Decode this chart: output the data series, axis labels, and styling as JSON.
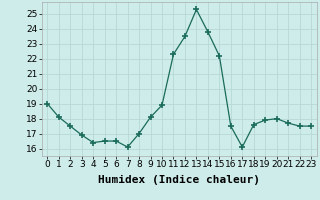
{
  "x": [
    0,
    1,
    2,
    3,
    4,
    5,
    6,
    7,
    8,
    9,
    10,
    11,
    12,
    13,
    14,
    15,
    16,
    17,
    18,
    19,
    20,
    21,
    22,
    23
  ],
  "y": [
    19.0,
    18.1,
    17.5,
    16.9,
    16.4,
    16.5,
    16.5,
    16.1,
    17.0,
    18.1,
    18.9,
    22.3,
    23.5,
    25.3,
    23.8,
    22.2,
    17.5,
    16.1,
    17.6,
    17.9,
    18.0,
    17.7,
    17.5,
    17.5
  ],
  "xlabel": "Humidex (Indice chaleur)",
  "ylim": [
    15.5,
    25.8
  ],
  "xlim": [
    -0.5,
    23.5
  ],
  "yticks": [
    16,
    17,
    18,
    19,
    20,
    21,
    22,
    23,
    24,
    25
  ],
  "xticks": [
    0,
    1,
    2,
    3,
    4,
    5,
    6,
    7,
    8,
    9,
    10,
    11,
    12,
    13,
    14,
    15,
    16,
    17,
    18,
    19,
    20,
    21,
    22,
    23
  ],
  "line_color": "#1a6b5a",
  "marker": "+",
  "marker_size": 4,
  "marker_lw": 1.2,
  "bg_color": "#ceecea",
  "grid_color_major": "#b8d8d5",
  "grid_color_minor": "#d4eceb",
  "tick_fontsize": 6.5,
  "xlabel_fontsize": 8
}
